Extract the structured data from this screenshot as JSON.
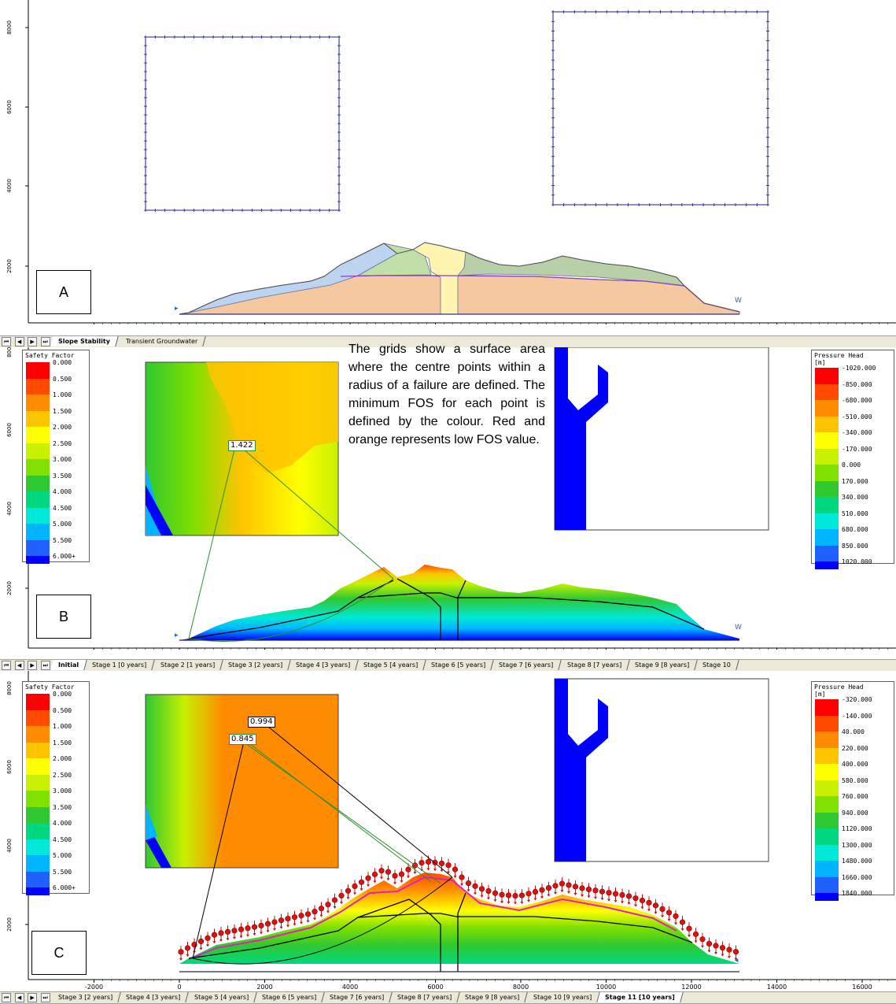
{
  "x_axis_ticks": [
    "-2000",
    "0",
    "2000",
    "4000",
    "6000",
    "8000",
    "10000",
    "12000",
    "14000",
    "16000"
  ],
  "y_axis_ticks": [
    "2000",
    "4000",
    "6000",
    "8000"
  ],
  "panels": {
    "a": {
      "label": "A",
      "tabs": [
        {
          "label": "Slope Stability",
          "active": true
        },
        {
          "label": "Transient Groundwater",
          "active": false
        }
      ]
    },
    "b": {
      "label": "B",
      "fos_labels": [
        "1.422"
      ],
      "tabs": [
        {
          "label": "Initial",
          "active": true
        },
        {
          "label": "Stage 1 [0 years]",
          "active": false
        },
        {
          "label": "Stage 2 [1 years]",
          "active": false
        },
        {
          "label": "Stage 3 [2 years]",
          "active": false
        },
        {
          "label": "Stage 4 [3 years]",
          "active": false
        },
        {
          "label": "Stage 5 [4 years]",
          "active": false
        },
        {
          "label": "Stage 6 [5 years]",
          "active": false
        },
        {
          "label": "Stage 7 [6 years]",
          "active": false
        },
        {
          "label": "Stage 8 [7 years]",
          "active": false
        },
        {
          "label": "Stage 9 [8 years]",
          "active": false
        },
        {
          "label": "Stage 10",
          "active": false
        }
      ],
      "safety_legend": {
        "title": "Safety Factor",
        "values": [
          "0.000",
          "0.500",
          "1.000",
          "1.500",
          "2.000",
          "2.500",
          "3.000",
          "3.500",
          "4.000",
          "4.500",
          "5.000",
          "5.500",
          "6.000+"
        ]
      },
      "pressure_legend": {
        "title": "Pressure Head",
        "unit": "[m]",
        "values": [
          "-1020.000",
          "-850.000",
          "-680.000",
          "-510.000",
          "-340.000",
          "-170.000",
          "0.000",
          "170.000",
          "340.000",
          "510.000",
          "680.000",
          "850.000",
          "1020.000"
        ]
      }
    },
    "c": {
      "label": "C",
      "fos_labels": [
        "0.994",
        "0.845"
      ],
      "tabs": [
        {
          "label": "Stage 3 [2 years]",
          "active": false
        },
        {
          "label": "Stage 4 [3 years]",
          "active": false
        },
        {
          "label": "Stage 5 [4 years]",
          "active": false
        },
        {
          "label": "Stage 6 [5 years]",
          "active": false
        },
        {
          "label": "Stage 7 [6 years]",
          "active": false
        },
        {
          "label": "Stage 8 [7 years]",
          "active": false
        },
        {
          "label": "Stage 9 [8 years]",
          "active": false
        },
        {
          "label": "Stage 10 [9 years]",
          "active": false
        },
        {
          "label": "Stage 11 [10 years]",
          "active": true
        }
      ],
      "safety_legend": {
        "title": "Safety Factor",
        "values": [
          "0.000",
          "0.500",
          "1.000",
          "1.500",
          "2.000",
          "2.500",
          "3.000",
          "3.500",
          "4.000",
          "4.500",
          "5.000",
          "5.500",
          "6.000+"
        ]
      },
      "pressure_legend": {
        "title": "Pressure Head",
        "unit": "[m]",
        "values": [
          "-320.000",
          "-140.000",
          "40.000",
          "220.000",
          "400.000",
          "580.000",
          "760.000",
          "940.000",
          "1120.000",
          "1300.000",
          "1480.000",
          "1660.000",
          "1840.000"
        ]
      }
    }
  },
  "note": "The grids show a surface area where the centre points within a radius of a failure are defined. The minimum FOS for each point is defined by the colour. Red and orange represents low FOS value.",
  "colors": {
    "scale": [
      "#ff0000",
      "#ff4a00",
      "#ff8c00",
      "#ffc400",
      "#ffff00",
      "#c8f000",
      "#80e000",
      "#30c830",
      "#00d880",
      "#00e8d8",
      "#00b4ff",
      "#2060ff",
      "#0000ff"
    ],
    "grid_border": "#1a1a8c",
    "slope_blue": "#bcd4f0",
    "slope_green": "#c0e0a8",
    "slope_yellow": "#fff5b0",
    "slope_orange": "#f6c8a0",
    "slope_gray_green": "#b8d0a8"
  }
}
